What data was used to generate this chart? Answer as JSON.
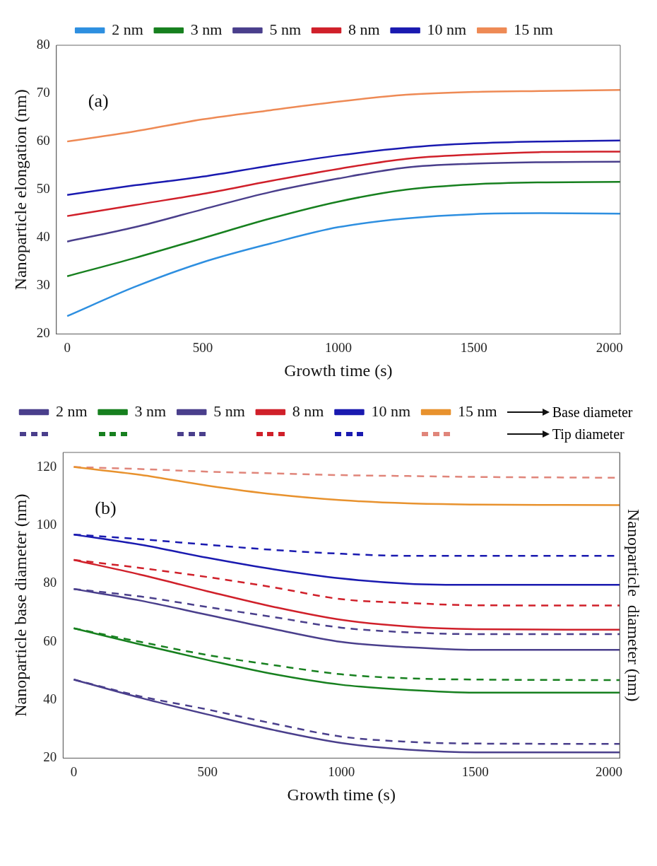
{
  "chart_data": [
    {
      "type": "line",
      "xlabel": "Growth time (s)",
      "ylabel": "Nanoparticle elongation (nm)",
      "xlim": [
        -40,
        2040
      ],
      "ylim": [
        20,
        80
      ],
      "xticks": [
        0,
        500,
        1000,
        1500,
        2000
      ],
      "yticks": [
        20,
        30,
        40,
        50,
        60,
        70,
        80
      ],
      "legend": "top",
      "annotations": [
        "(a)"
      ],
      "x": [
        0,
        250,
        500,
        750,
        1000,
        1250,
        1500,
        1750,
        2040
      ],
      "series": [
        {
          "name": "2 nm",
          "color": "#2e8fe0",
          "line_style": "solid",
          "values": [
            23.7,
            29.8,
            34.9,
            38.8,
            42.2,
            44.0,
            44.9,
            45.1,
            45.0
          ]
        },
        {
          "name": "3 nm",
          "color": "#17801f",
          "line_style": "solid",
          "values": [
            32.0,
            35.8,
            39.9,
            44.0,
            47.5,
            50.0,
            51.1,
            51.5,
            51.6
          ]
        },
        {
          "name": "5 nm",
          "color": "#4a3f8c",
          "line_style": "solid",
          "values": [
            39.2,
            42.2,
            45.9,
            49.5,
            52.3,
            54.6,
            55.4,
            55.7,
            55.8
          ]
        },
        {
          "name": "8 nm",
          "color": "#d0202a",
          "line_style": "solid",
          "values": [
            44.5,
            46.8,
            49.1,
            51.8,
            54.3,
            56.4,
            57.3,
            57.8,
            57.9
          ]
        },
        {
          "name": "10 nm",
          "color": "#1a1ab0",
          "line_style": "solid",
          "values": [
            48.9,
            50.9,
            52.7,
            55.0,
            57.1,
            58.7,
            59.6,
            60.0,
            60.2
          ]
        },
        {
          "name": "15 nm",
          "color": "#ee8a55",
          "line_style": "solid",
          "values": [
            60.0,
            62.1,
            64.6,
            66.5,
            68.3,
            69.7,
            70.3,
            70.5,
            70.7
          ]
        }
      ]
    },
    {
      "type": "line",
      "xlabel": "Growth time (s)",
      "ylabel": "Nanoparticle base diameter (nm)",
      "y2label": "Nanoparticle  diameter (nm)",
      "xlim": [
        -40,
        2040
      ],
      "ylim": [
        20,
        125
      ],
      "xticks": [
        0,
        500,
        1000,
        1500,
        2000
      ],
      "yticks": [
        20,
        40,
        60,
        80,
        100,
        120
      ],
      "legend": "top",
      "annotations": [
        "(b)",
        "Base diameter",
        "Tip diameter"
      ],
      "x": [
        0,
        250,
        500,
        750,
        1000,
        1250,
        1500,
        2040
      ],
      "series": [
        {
          "name": "2 nm",
          "color": "#4a3f8c",
          "line_style": "solid",
          "values": [
            47.0,
            40.7,
            35.0,
            29.6,
            25.2,
            22.9,
            22.0,
            22.0
          ]
        },
        {
          "name": "3 nm",
          "color": "#17801f",
          "line_style": "solid",
          "values": [
            64.6,
            59.0,
            53.7,
            48.8,
            45.2,
            43.4,
            42.5,
            42.5
          ]
        },
        {
          "name": "5 nm",
          "color": "#4a3f8c",
          "line_style": "solid",
          "values": [
            78.1,
            74.1,
            69.2,
            64.3,
            59.9,
            58.1,
            57.2,
            57.2
          ]
        },
        {
          "name": "8 nm",
          "color": "#d0202a",
          "line_style": "solid",
          "values": [
            88.1,
            83.0,
            77.3,
            71.9,
            67.5,
            65.2,
            64.3,
            64.1
          ]
        },
        {
          "name": "10 nm",
          "color": "#1a1ab0",
          "line_style": "solid",
          "values": [
            96.8,
            93.3,
            88.8,
            84.8,
            81.7,
            79.9,
            79.5,
            79.5
          ]
        },
        {
          "name": "15 nm",
          "color": "#e8922e",
          "line_style": "solid",
          "values": [
            120.0,
            117.3,
            113.6,
            110.6,
            108.6,
            107.5,
            107.1,
            106.9
          ]
        },
        {
          "color": "#4a3f8c",
          "line_style": "dashed",
          "values": [
            47.0,
            41.2,
            36.7,
            31.8,
            27.4,
            25.6,
            25.0,
            24.9
          ]
        },
        {
          "color": "#17801f",
          "line_style": "dashed",
          "values": [
            64.6,
            59.9,
            55.4,
            51.9,
            48.8,
            47.4,
            47.0,
            46.8
          ]
        },
        {
          "color": "#4a3f8c",
          "line_style": "dashed",
          "values": [
            78.1,
            75.5,
            71.9,
            68.4,
            64.8,
            63.2,
            62.6,
            62.6
          ]
        },
        {
          "color": "#d0202a",
          "line_style": "dashed",
          "values": [
            88.1,
            85.3,
            82.2,
            78.6,
            74.6,
            73.3,
            72.5,
            72.4
          ]
        },
        {
          "color": "#1a1ab0",
          "line_style": "dashed",
          "values": [
            96.8,
            95.2,
            93.3,
            91.5,
            90.2,
            89.5,
            89.5,
            89.5
          ]
        },
        {
          "color": "#e0857a",
          "line_style": "dashed",
          "values": [
            120.0,
            119.3,
            118.4,
            117.8,
            117.2,
            116.9,
            116.6,
            116.3
          ]
        }
      ]
    }
  ]
}
